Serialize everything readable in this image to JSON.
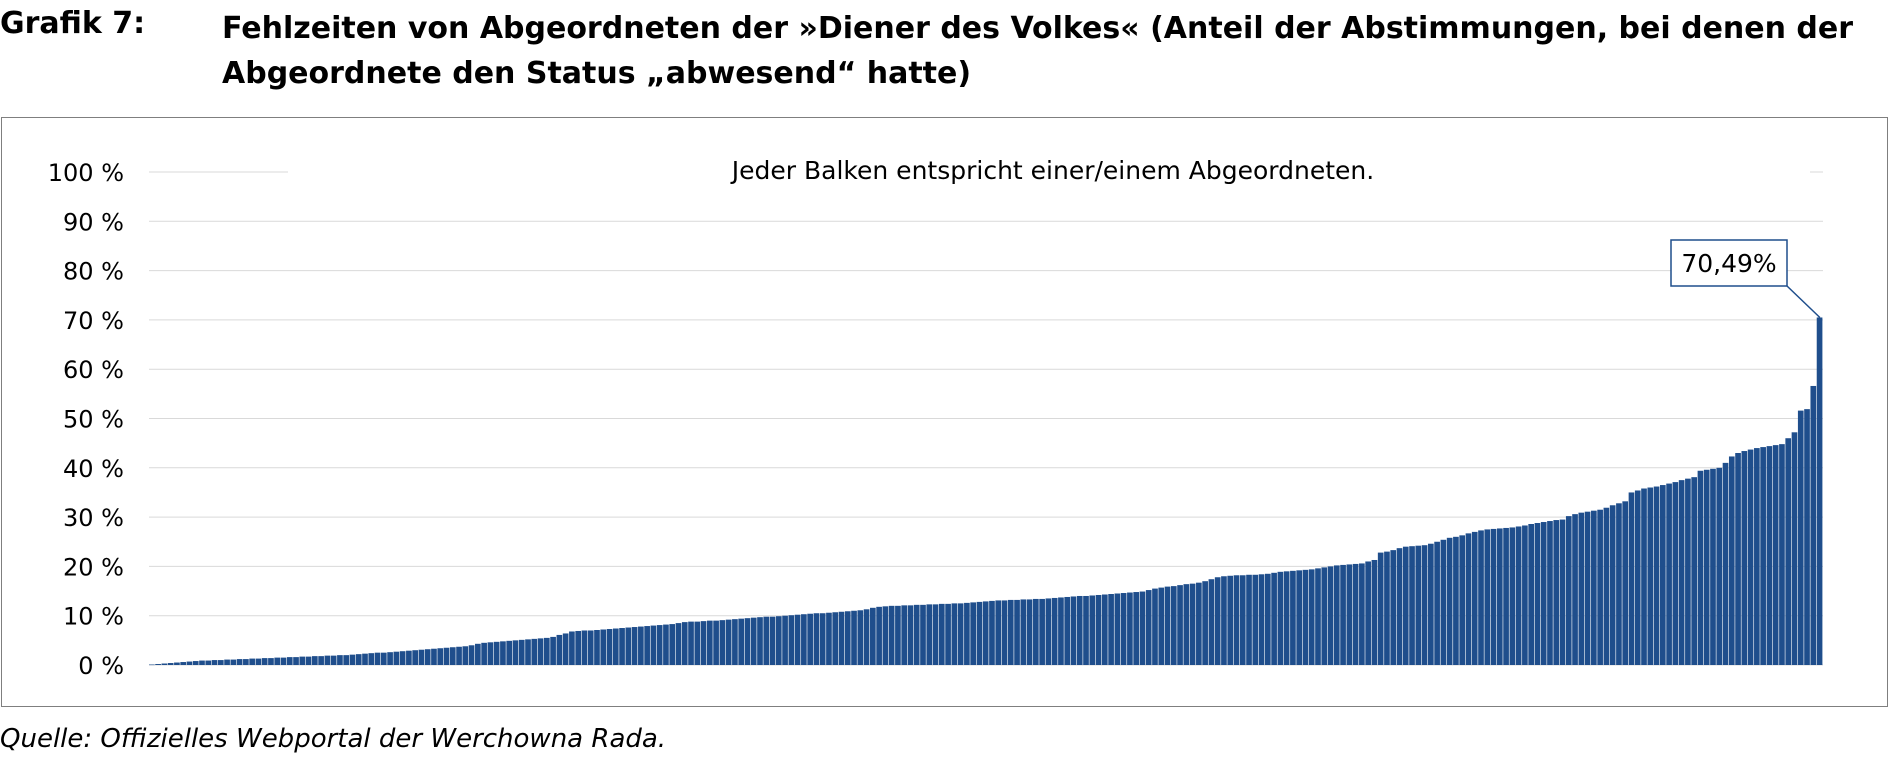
{
  "header": {
    "label": "Grafik 7:",
    "title": "Fehlzeiten von Abgeordneten der »Diener des Volkes« (Anteil der Abstimmungen, bei denen der Abgeordnete den Status „abwesend“ hatte)"
  },
  "source": "Quelle: Offizielles Webportal der Werchowna Rada.",
  "colors": {
    "bar": "#1f4e8c",
    "bar_edge": "#ffffff",
    "grid": "#d9d9d9",
    "callout_border": "#1f4e8c"
  },
  "chart_data": {
    "type": "bar",
    "title": "",
    "subtitle": "Jeder Balken entspricht einer/einem Abgeordneten.",
    "xlabel": "",
    "ylabel": "",
    "ylim": [
      0,
      100
    ],
    "grid": true,
    "yticks": [
      "0 %",
      "10 %",
      "20 %",
      "30 %",
      "40 %",
      "50 %",
      "60 %",
      "70 %",
      "80 %",
      "90 %",
      "100 %"
    ],
    "annotation": {
      "text": "70,49%",
      "value": 70.49
    },
    "values": [
      0.1,
      0.2,
      0.3,
      0.4,
      0.5,
      0.6,
      0.7,
      0.8,
      0.9,
      0.9,
      1.0,
      1.0,
      1.1,
      1.1,
      1.2,
      1.2,
      1.3,
      1.3,
      1.4,
      1.4,
      1.5,
      1.5,
      1.6,
      1.6,
      1.7,
      1.7,
      1.8,
      1.8,
      1.9,
      1.9,
      2.0,
      2.0,
      2.1,
      2.2,
      2.3,
      2.4,
      2.5,
      2.5,
      2.6,
      2.7,
      2.8,
      2.9,
      3.0,
      3.1,
      3.2,
      3.3,
      3.4,
      3.5,
      3.6,
      3.7,
      3.8,
      4.0,
      4.3,
      4.5,
      4.6,
      4.7,
      4.8,
      4.9,
      5.0,
      5.1,
      5.2,
      5.3,
      5.4,
      5.5,
      5.7,
      6.1,
      6.4,
      6.8,
      6.9,
      7.0,
      7.0,
      7.1,
      7.2,
      7.3,
      7.4,
      7.5,
      7.6,
      7.7,
      7.8,
      7.9,
      8.0,
      8.1,
      8.2,
      8.3,
      8.5,
      8.7,
      8.8,
      8.8,
      8.9,
      9.0,
      9.0,
      9.1,
      9.2,
      9.3,
      9.4,
      9.5,
      9.6,
      9.7,
      9.8,
      9.8,
      9.9,
      10.0,
      10.1,
      10.2,
      10.3,
      10.4,
      10.5,
      10.5,
      10.6,
      10.7,
      10.8,
      10.9,
      11.0,
      11.1,
      11.3,
      11.6,
      11.8,
      11.9,
      12.0,
      12.0,
      12.1,
      12.1,
      12.2,
      12.2,
      12.3,
      12.3,
      12.4,
      12.4,
      12.5,
      12.5,
      12.6,
      12.7,
      12.8,
      12.9,
      13.0,
      13.1,
      13.1,
      13.2,
      13.2,
      13.3,
      13.3,
      13.4,
      13.4,
      13.5,
      13.6,
      13.7,
      13.8,
      13.9,
      14.0,
      14.0,
      14.1,
      14.2,
      14.3,
      14.4,
      14.5,
      14.6,
      14.7,
      14.8,
      14.9,
      15.2,
      15.5,
      15.7,
      15.9,
      16.0,
      16.2,
      16.4,
      16.5,
      16.7,
      17.0,
      17.4,
      17.8,
      18.0,
      18.1,
      18.2,
      18.2,
      18.3,
      18.3,
      18.4,
      18.5,
      18.7,
      18.9,
      19.0,
      19.1,
      19.2,
      19.3,
      19.4,
      19.6,
      19.8,
      20.0,
      20.2,
      20.3,
      20.4,
      20.5,
      20.6,
      21.0,
      21.3,
      22.8,
      23.0,
      23.3,
      23.7,
      24.0,
      24.1,
      24.2,
      24.3,
      24.6,
      25.0,
      25.4,
      25.8,
      26.0,
      26.3,
      26.7,
      27.0,
      27.3,
      27.5,
      27.6,
      27.7,
      27.8,
      27.9,
      28.1,
      28.3,
      28.6,
      28.8,
      29.0,
      29.2,
      29.4,
      29.5,
      30.2,
      30.6,
      30.9,
      31.1,
      31.3,
      31.5,
      31.9,
      32.4,
      32.8,
      33.2,
      35.0,
      35.4,
      35.8,
      36.0,
      36.2,
      36.5,
      36.8,
      37.1,
      37.5,
      37.8,
      38.1,
      39.4,
      39.6,
      39.8,
      40.0,
      41.0,
      42.3,
      43.0,
      43.4,
      43.7,
      44.0,
      44.2,
      44.4,
      44.6,
      44.8,
      46.0,
      47.2,
      51.6,
      51.9,
      56.6,
      70.49
    ]
  }
}
